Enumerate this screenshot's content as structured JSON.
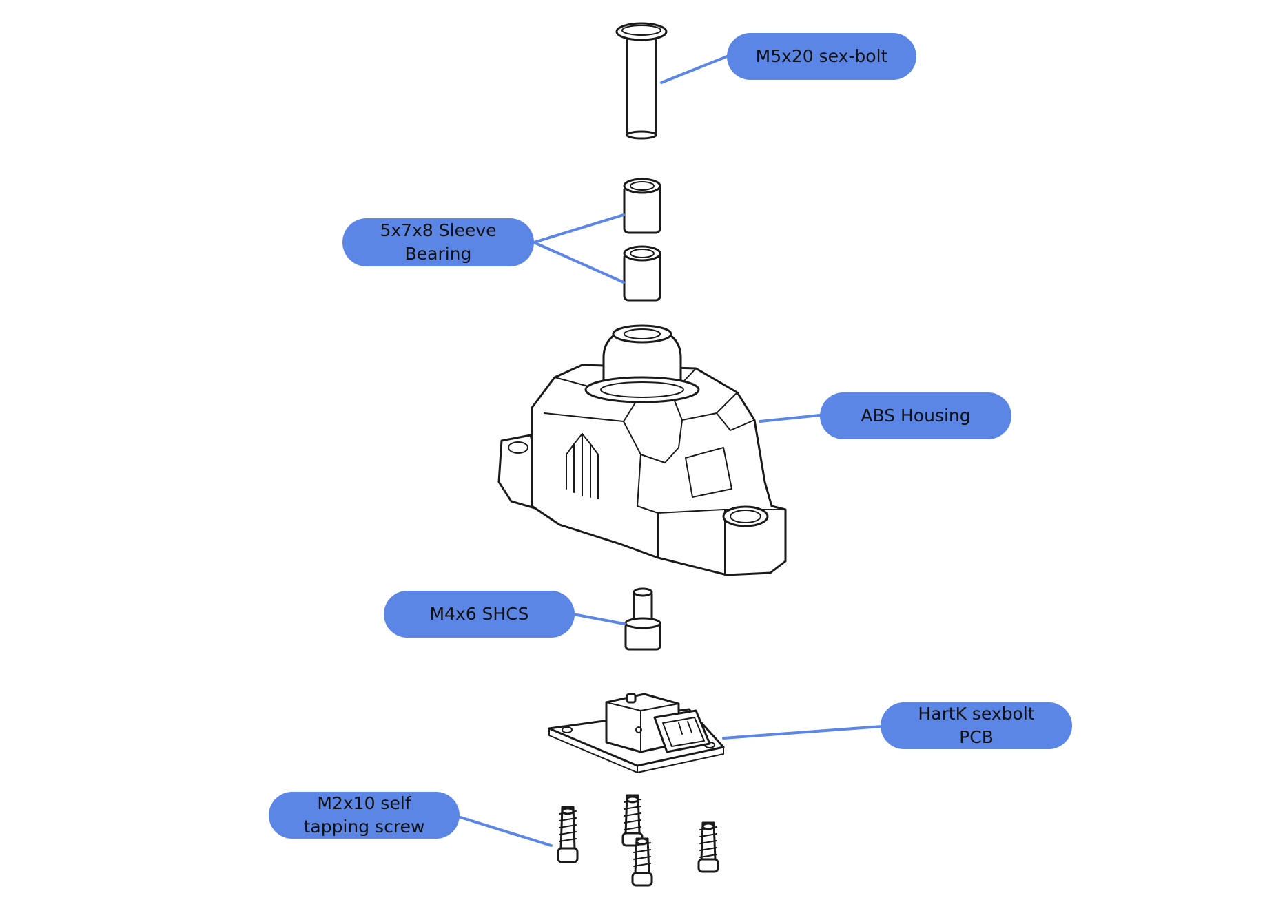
{
  "colors": {
    "callout_fill": "#5b86e5",
    "leader_line": "#5b86e5",
    "linework": "#1a1a1a",
    "background": "#ffffff"
  },
  "callouts": {
    "bolt": {
      "lines": [
        "M5x20 sex-bolt"
      ]
    },
    "sleeve_bearing": {
      "lines": [
        "5x7x8 Sleeve",
        "Bearing"
      ]
    },
    "housing": {
      "lines": [
        "ABS Housing"
      ]
    },
    "shcs": {
      "lines": [
        "M4x6 SHCS"
      ]
    },
    "pcb": {
      "lines": [
        "HartK sexbolt",
        "PCB"
      ]
    },
    "screw": {
      "lines": [
        "M2x10 self",
        "tapping screw"
      ]
    }
  },
  "housing_logo": {
    "icon": "mm-logo-icon"
  }
}
